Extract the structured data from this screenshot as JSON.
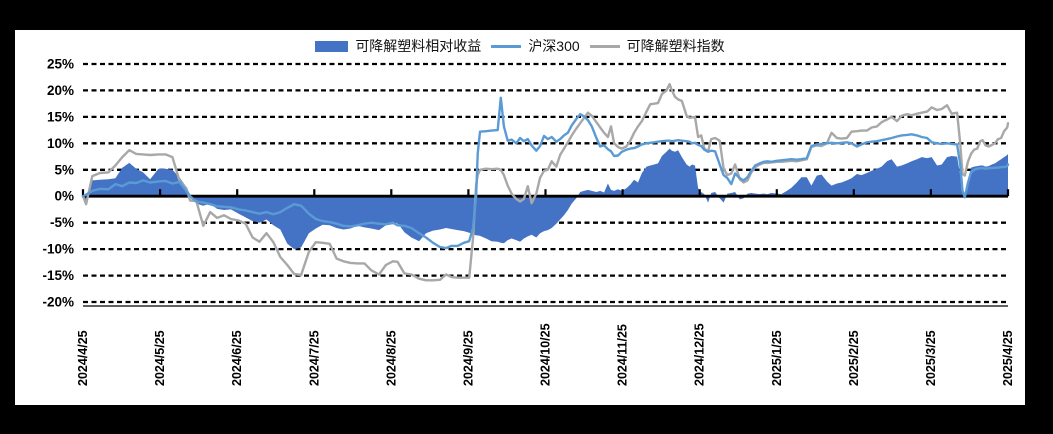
{
  "page": {
    "background": "#000000",
    "panel_background": "#ffffff"
  },
  "legend": {
    "items": [
      {
        "label": "可降解塑料相对收益",
        "swatch": "area",
        "color": "#4472C4"
      },
      {
        "label": "沪深300",
        "swatch": "line",
        "color": "#5B9BD5"
      },
      {
        "label": "可降解塑料指数",
        "swatch": "line",
        "color": "#A8A8A8"
      }
    ]
  },
  "chart_data": {
    "type": "area+line combo",
    "title": "",
    "xlabel": "",
    "ylabel": "",
    "x_unit": "months since 2024/4/25",
    "xlim": [
      0,
      12
    ],
    "ylim": [
      -20,
      25
    ],
    "grid": "horizontal dashed black",
    "grid_color": "#000000",
    "axis_color": "#000000",
    "y_tick_suffix": "%",
    "y_ticks": [
      25,
      20,
      15,
      10,
      5,
      0,
      -5,
      -10,
      -15,
      -20
    ],
    "x_ticks": {
      "positions": [
        0,
        1,
        2,
        3,
        4,
        5,
        6,
        7,
        8,
        9,
        10,
        11,
        12
      ],
      "labels": [
        "2024/4/25",
        "2024/5/25",
        "2024/6/25",
        "2024/7/25",
        "2024/8/25",
        "2024/9/25",
        "2024/10/25",
        "2024/11/25",
        "2024/12/25",
        "2025/1/25",
        "2025/2/25",
        "2025/3/25",
        "2025/4/25"
      ]
    },
    "x": [
      0,
      0.04,
      0.12,
      0.22,
      0.33,
      0.42,
      0.51,
      0.6,
      0.69,
      0.78,
      0.87,
      0.98,
      1.07,
      1.16,
      1.25,
      1.34,
      1.39,
      1.47,
      1.56,
      1.65,
      1.74,
      1.83,
      1.92,
      2.02,
      2.11,
      2.2,
      2.29,
      2.38,
      2.47,
      2.56,
      2.65,
      2.74,
      2.83,
      2.93,
      3.02,
      3.11,
      3.2,
      3.29,
      3.38,
      3.47,
      3.56,
      3.65,
      3.74,
      3.84,
      3.93,
      4.02,
      4.08,
      4.17,
      4.26,
      4.36,
      4.45,
      4.54,
      4.63,
      4.71,
      4.78,
      4.86,
      4.94,
      5.01,
      5.06,
      5.1,
      5.12,
      5.15,
      5.23,
      5.3,
      5.38,
      5.42,
      5.46,
      5.51,
      5.56,
      5.62,
      5.67,
      5.72,
      5.77,
      5.82,
      5.88,
      5.93,
      5.98,
      6.03,
      6.08,
      6.14,
      6.19,
      6.24,
      6.29,
      6.34,
      6.4,
      6.45,
      6.5,
      6.55,
      6.6,
      6.66,
      6.71,
      6.76,
      6.81,
      6.85,
      6.89,
      6.94,
      6.99,
      7.05,
      7.1,
      7.15,
      7.2,
      7.25,
      7.31,
      7.36,
      7.41,
      7.46,
      7.51,
      7.57,
      7.61,
      7.64,
      7.68,
      7.72,
      7.77,
      7.83,
      7.87,
      7.9,
      7.94,
      7.98,
      8.02,
      8.06,
      8.11,
      8.15,
      8.2,
      8.26,
      8.31,
      8.36,
      8.41,
      8.46,
      8.52,
      8.57,
      8.62,
      8.67,
      8.72,
      8.78,
      8.83,
      8.88,
      8.93,
      9.0,
      9.06,
      9.13,
      9.19,
      9.26,
      9.32,
      9.39,
      9.45,
      9.52,
      9.58,
      9.65,
      9.71,
      9.78,
      9.84,
      9.91,
      9.97,
      10.04,
      10.1,
      10.17,
      10.23,
      10.3,
      10.36,
      10.43,
      10.49,
      10.56,
      10.62,
      10.69,
      10.75,
      10.82,
      10.88,
      10.95,
      11.01,
      11.08,
      11.14,
      11.21,
      11.27,
      11.34,
      11.38,
      11.41,
      11.44,
      11.48,
      11.52,
      11.56,
      11.6,
      11.64,
      11.67,
      11.71,
      11.75,
      11.79,
      11.83,
      11.87,
      11.91,
      11.95,
      11.99,
      12
    ],
    "series": [
      {
        "name": "可降解塑料相对收益",
        "type": "area",
        "color": "#4472C4",
        "values": [
          0,
          -1.6,
          3.0,
          3.1,
          3.2,
          3.4,
          5.4,
          6.3,
          5.2,
          4.5,
          3.2,
          5.2,
          5.2,
          5.0,
          3.6,
          1.8,
          0.3,
          -1.4,
          -1.8,
          -1.4,
          -2.4,
          -2.6,
          -2.5,
          -3.3,
          -4.0,
          -4.7,
          -5.0,
          -4.4,
          -5.5,
          -6.3,
          -9.0,
          -10.0,
          -9.7,
          -7.0,
          -6.1,
          -5.4,
          -5.5,
          -6.0,
          -6.3,
          -6.1,
          -5.6,
          -5.9,
          -6.1,
          -6.4,
          -5.5,
          -5.3,
          -5.0,
          -6.8,
          -7.8,
          -8.5,
          -7.0,
          -6.5,
          -6.3,
          -6.0,
          -6.2,
          -6.4,
          -6.6,
          -6.9,
          -7.2,
          -7.4,
          -7.4,
          -7.5,
          -8.0,
          -8.5,
          -8.6,
          -8.8,
          -8.9,
          -8.3,
          -8.0,
          -8.3,
          -8.6,
          -8.0,
          -7.6,
          -7.3,
          -7.8,
          -7.0,
          -6.6,
          -6.4,
          -6.0,
          -5.2,
          -4.4,
          -3.6,
          -2.6,
          -1.4,
          -0.4,
          0.8,
          1.0,
          1.2,
          1.0,
          0.8,
          1.0,
          0.7,
          2.4,
          1.2,
          1.0,
          1.3,
          1.0,
          1.5,
          2.2,
          3.1,
          2.6,
          4.4,
          5.6,
          5.8,
          6.0,
          6.2,
          7.6,
          8.4,
          9.0,
          8.6,
          8.4,
          8.7,
          7.4,
          6.0,
          5.6,
          6.0,
          5.8,
          1.5,
          0.8,
          0.4,
          -1.2,
          0.6,
          0.8,
          -0.4,
          -1.2,
          0.5,
          0.6,
          0.8,
          -0.6,
          -0.4,
          0.5,
          0.6,
          0.5,
          0.4,
          0.5,
          0.4,
          0.6,
          0.5,
          0.4,
          1.0,
          1.6,
          2.6,
          3.6,
          3.6,
          2.0,
          3.9,
          4.1,
          2.8,
          2.0,
          2.4,
          2.6,
          3.0,
          3.4,
          4.2,
          4.0,
          4.4,
          4.8,
          5.2,
          5.6,
          6.6,
          7.0,
          5.6,
          5.8,
          6.2,
          6.6,
          7.0,
          7.4,
          7.2,
          7.4,
          5.8,
          6.0,
          7.4,
          7.6,
          7.5,
          4.0,
          1.0,
          0.2,
          3.0,
          5.4,
          5.6,
          5.7,
          5.8,
          5.8,
          5.6,
          5.7,
          6.0,
          6.2,
          6.6,
          7.0,
          7.4,
          7.8,
          8.0
        ]
      },
      {
        "name": "沪深300",
        "type": "line",
        "color": "#5B9BD5",
        "values": [
          0,
          0.3,
          1.0,
          1.4,
          1.3,
          2.3,
          1.9,
          2.6,
          2.5,
          3.0,
          2.6,
          2.8,
          2.9,
          2.4,
          2.7,
          1.0,
          0.0,
          -1.0,
          -1.2,
          -1.5,
          -1.9,
          -2.0,
          -2.1,
          -2.5,
          -2.7,
          -3.0,
          -3.3,
          -3.0,
          -3.4,
          -3.0,
          -2.2,
          -1.5,
          -1.8,
          -3.3,
          -4.3,
          -4.7,
          -4.9,
          -5.2,
          -5.6,
          -5.7,
          -5.5,
          -5.2,
          -5.0,
          -5.2,
          -5.3,
          -5.0,
          -5.5,
          -5.6,
          -6.0,
          -7.0,
          -7.8,
          -8.8,
          -9.6,
          -9.8,
          -9.4,
          -9.4,
          -8.8,
          -8.5,
          -6.0,
          0.0,
          8.0,
          12.2,
          12.3,
          12.4,
          12.5,
          18.6,
          13.2,
          10.5,
          10.7,
          10.0,
          11.0,
          10.4,
          10.8,
          9.6,
          8.6,
          9.5,
          11.4,
          10.8,
          11.2,
          10.3,
          10.8,
          11.5,
          12.0,
          13.4,
          14.6,
          15.5,
          15.1,
          14.4,
          13.2,
          11.0,
          9.4,
          9.6,
          8.9,
          8.5,
          7.6,
          7.7,
          8.4,
          8.8,
          9.0,
          9.1,
          9.4,
          9.8,
          10.0,
          10.1,
          10.2,
          10.3,
          10.4,
          10.5,
          10.5,
          10.4,
          10.5,
          10.6,
          10.5,
          10.4,
          10.3,
          10.0,
          10.1,
          9.7,
          9.5,
          8.8,
          8.4,
          8.6,
          8.5,
          6.0,
          4.0,
          3.4,
          2.3,
          4.3,
          3.4,
          3.0,
          3.6,
          4.8,
          5.8,
          6.2,
          6.5,
          6.6,
          6.5,
          6.7,
          6.8,
          6.9,
          7.0,
          6.9,
          7.0,
          7.2,
          9.5,
          9.8,
          9.9,
          10.0,
          10.1,
          10.0,
          10.1,
          10.2,
          10.0,
          9.4,
          9.8,
          10.2,
          10.3,
          10.4,
          10.6,
          10.8,
          11.0,
          11.3,
          11.5,
          11.6,
          11.7,
          11.5,
          11.2,
          11.0,
          10.2,
          10.0,
          9.9,
          10.0,
          9.9,
          9.8,
          6.0,
          1.0,
          -0.2,
          2.5,
          4.5,
          5.0,
          5.2,
          5.3,
          5.3,
          5.2,
          5.3,
          5.3,
          5.4,
          5.4,
          5.5,
          5.5,
          5.7,
          6.0
        ]
      },
      {
        "name": "可降解塑料指数",
        "type": "line",
        "color": "#A8A8A8",
        "values": [
          0,
          -1.5,
          3.8,
          4.4,
          4.5,
          5.8,
          7.4,
          8.7,
          8.0,
          7.9,
          7.8,
          7.9,
          7.9,
          7.4,
          3.0,
          1.5,
          -0.8,
          -0.9,
          -5.6,
          -3.0,
          -4.1,
          -3.6,
          -4.3,
          -4.6,
          -5.2,
          -7.8,
          -8.6,
          -7.0,
          -8.7,
          -11.5,
          -13.0,
          -14.7,
          -14.9,
          -10.5,
          -8.7,
          -8.8,
          -9.0,
          -11.8,
          -12.3,
          -12.6,
          -12.7,
          -12.7,
          -14.0,
          -14.8,
          -13.0,
          -12.3,
          -12.4,
          -14.6,
          -14.8,
          -15.6,
          -15.9,
          -15.9,
          -15.8,
          -14.8,
          -15.3,
          -15.4,
          -15.4,
          -15.4,
          -8.0,
          2.0,
          4.0,
          5.0,
          5.2,
          5.1,
          5.2,
          5.0,
          4.0,
          2.0,
          0.5,
          -0.5,
          -1.0,
          -0.5,
          1.9,
          -1.3,
          0.5,
          3.5,
          4.8,
          5.0,
          6.6,
          5.6,
          7.8,
          9.0,
          10.2,
          11.5,
          12.8,
          13.8,
          14.8,
          15.8,
          15.2,
          14.0,
          13.0,
          12.0,
          11.2,
          13.2,
          10.0,
          9.3,
          9.0,
          9.4,
          10.5,
          12.0,
          13.2,
          14.2,
          16.0,
          17.4,
          17.5,
          17.6,
          19.3,
          20.0,
          21.2,
          20.0,
          18.8,
          18.3,
          18.0,
          15.2,
          14.8,
          14.9,
          15.0,
          11.2,
          11.5,
          9.0,
          8.5,
          10.8,
          11.0,
          10.5,
          5.2,
          4.0,
          4.3,
          6.0,
          3.2,
          2.6,
          3.0,
          4.5,
          5.5,
          6.0,
          6.3,
          6.3,
          6.4,
          6.5,
          6.5,
          6.6,
          6.7,
          6.6,
          6.8,
          7.0,
          9.3,
          9.6,
          9.5,
          10.0,
          12.0,
          11.0,
          10.9,
          11.0,
          12.2,
          12.3,
          12.4,
          12.4,
          13.0,
          13.2,
          14.0,
          14.5,
          15.0,
          14.2,
          15.2,
          15.5,
          15.3,
          15.6,
          15.8,
          16.0,
          16.8,
          16.3,
          16.5,
          17.2,
          15.6,
          15.8,
          10.0,
          4.2,
          3.9,
          6.5,
          8.0,
          8.8,
          9.0,
          10.4,
          10.6,
          9.6,
          9.4,
          9.7,
          10.0,
          10.8,
          11.0,
          12.3,
          13.0,
          13.8
        ]
      }
    ]
  }
}
